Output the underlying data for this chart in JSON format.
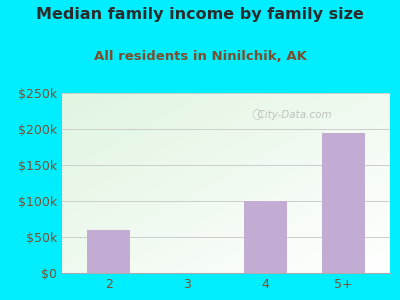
{
  "title": "Median family income by family size",
  "subtitle": "All residents in Ninilchik, AK",
  "categories": [
    "2",
    "3",
    "4",
    "5+"
  ],
  "values": [
    60000,
    0,
    100000,
    195000
  ],
  "bar_color": "#c2acd4",
  "ylim": [
    0,
    250000
  ],
  "yticks": [
    0,
    50000,
    100000,
    150000,
    200000,
    250000
  ],
  "ytick_labels": [
    "$0",
    "$50k",
    "$100k",
    "$150k",
    "$200k",
    "$250k"
  ],
  "background_outer": "#00eeff",
  "title_color": "#2b2b2b",
  "subtitle_color": "#7a4e2d",
  "tick_color": "#7a4e2d",
  "grid_color": "#cccccc",
  "watermark": "  City-Data.com",
  "title_fontsize": 11.5,
  "subtitle_fontsize": 9.5
}
